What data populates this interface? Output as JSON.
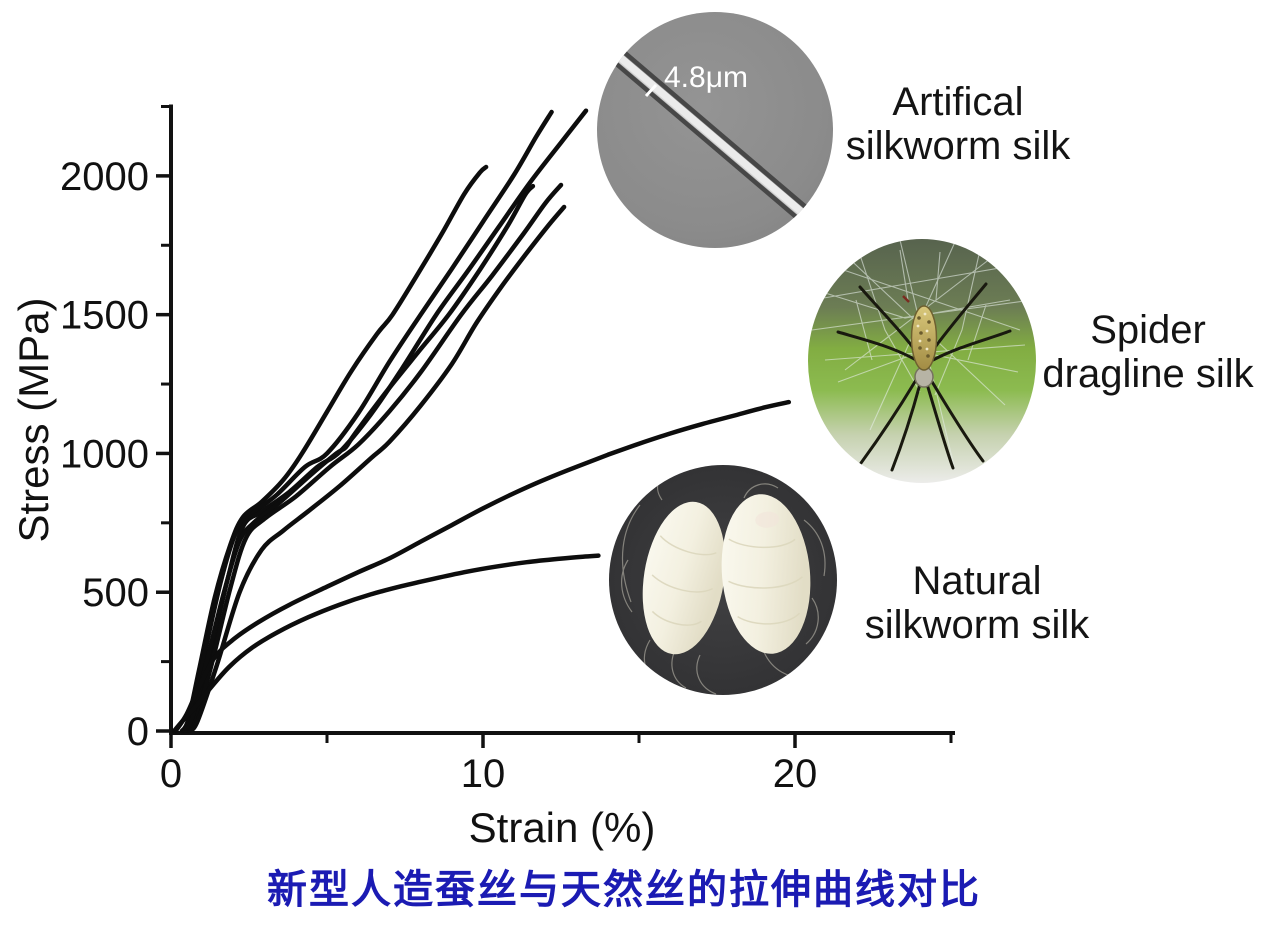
{
  "caption": {
    "text": "新型人造蚕丝与天然丝的拉伸曲线对比",
    "color": "#1b1bb3"
  },
  "chart_data": {
    "type": "line",
    "xlabel": "Strain (%)",
    "ylabel": "Stress (MPa)",
    "xlim": [
      0,
      25
    ],
    "ylim": [
      0,
      2250
    ],
    "x_major_ticks": [
      0,
      10,
      20
    ],
    "x_minor_ticks": [
      5,
      15,
      25
    ],
    "y_major_ticks": [
      0,
      500,
      1000,
      1500,
      2000
    ],
    "y_minor_ticks": [
      250,
      750,
      1250,
      1750,
      2250
    ],
    "grid": false,
    "legend": "none",
    "line_color": "#0d0d0d",
    "series": [
      {
        "name": "artificial-silkworm-1",
        "group": "Artifical silkworm silk",
        "points": [
          [
            0.35,
            0
          ],
          [
            0.55,
            40
          ],
          [
            0.9,
            220
          ],
          [
            1.4,
            480
          ],
          [
            1.9,
            670
          ],
          [
            2.3,
            770
          ],
          [
            2.9,
            825
          ],
          [
            3.6,
            905
          ],
          [
            4.2,
            1000
          ],
          [
            5.0,
            1150
          ],
          [
            5.8,
            1300
          ],
          [
            6.6,
            1430
          ],
          [
            7.1,
            1500
          ],
          [
            7.9,
            1645
          ],
          [
            8.7,
            1795
          ],
          [
            9.4,
            1935
          ],
          [
            9.9,
            2012
          ],
          [
            10.1,
            2032
          ]
        ]
      },
      {
        "name": "artificial-silkworm-2",
        "group": "Artifical silkworm silk",
        "points": [
          [
            0.4,
            0
          ],
          [
            0.6,
            40
          ],
          [
            1.0,
            240
          ],
          [
            1.6,
            540
          ],
          [
            2.1,
            720
          ],
          [
            2.6,
            782
          ],
          [
            3.4,
            852
          ],
          [
            4.3,
            952
          ],
          [
            5.0,
            1000
          ],
          [
            6.0,
            1145
          ],
          [
            7.0,
            1330
          ],
          [
            8.0,
            1500
          ],
          [
            9.0,
            1665
          ],
          [
            10.0,
            1835
          ],
          [
            11.0,
            2005
          ],
          [
            11.7,
            2140
          ],
          [
            12.2,
            2230
          ]
        ]
      },
      {
        "name": "artificial-silkworm-3",
        "group": "Artifical silkworm silk",
        "points": [
          [
            0.5,
            0
          ],
          [
            0.7,
            40
          ],
          [
            1.2,
            250
          ],
          [
            1.8,
            540
          ],
          [
            2.3,
            735
          ],
          [
            2.9,
            790
          ],
          [
            3.8,
            862
          ],
          [
            4.7,
            952
          ],
          [
            5.4,
            1005
          ],
          [
            6.4,
            1140
          ],
          [
            7.4,
            1305
          ],
          [
            8.5,
            1500
          ],
          [
            9.5,
            1655
          ],
          [
            10.5,
            1815
          ],
          [
            11.5,
            1975
          ],
          [
            12.5,
            2120
          ],
          [
            13.3,
            2235
          ]
        ]
      },
      {
        "name": "artificial-silkworm-4",
        "group": "Artifical silkworm silk",
        "points": [
          [
            0.45,
            0
          ],
          [
            0.65,
            35
          ],
          [
            1.1,
            230
          ],
          [
            1.7,
            500
          ],
          [
            2.2,
            685
          ],
          [
            2.7,
            755
          ],
          [
            3.5,
            825
          ],
          [
            4.5,
            925
          ],
          [
            5.3,
            1000
          ],
          [
            5.6,
            1022
          ],
          [
            5.9,
            1072
          ],
          [
            6.9,
            1222
          ],
          [
            7.9,
            1362
          ],
          [
            8.9,
            1500
          ],
          [
            9.9,
            1662
          ],
          [
            10.8,
            1822
          ],
          [
            11.35,
            1932
          ],
          [
            11.6,
            1963
          ]
        ]
      },
      {
        "name": "artificial-silkworm-5",
        "group": "Artifical silkworm silk",
        "points": [
          [
            0.55,
            0
          ],
          [
            0.8,
            40
          ],
          [
            1.3,
            240
          ],
          [
            1.9,
            515
          ],
          [
            2.4,
            695
          ],
          [
            3.0,
            765
          ],
          [
            4.0,
            845
          ],
          [
            5.1,
            952
          ],
          [
            6.0,
            1032
          ],
          [
            7.0,
            1152
          ],
          [
            8.0,
            1292
          ],
          [
            9.3,
            1500
          ],
          [
            10.3,
            1642
          ],
          [
            11.3,
            1792
          ],
          [
            12.0,
            1902
          ],
          [
            12.5,
            1967
          ]
        ]
      },
      {
        "name": "artificial-silkworm-6",
        "group": "Artifical silkworm silk",
        "points": [
          [
            0.6,
            0
          ],
          [
            0.85,
            35
          ],
          [
            1.45,
            230
          ],
          [
            2.2,
            500
          ],
          [
            2.9,
            652
          ],
          [
            3.6,
            722
          ],
          [
            4.4,
            792
          ],
          [
            5.4,
            882
          ],
          [
            6.4,
            982
          ],
          [
            7.0,
            1042
          ],
          [
            8.0,
            1172
          ],
          [
            9.0,
            1322
          ],
          [
            9.8,
            1472
          ],
          [
            10.6,
            1602
          ],
          [
            11.4,
            1722
          ],
          [
            12.1,
            1822
          ],
          [
            12.6,
            1888
          ]
        ]
      },
      {
        "name": "spider-dragline",
        "group": "Spider dragline silk",
        "points": [
          [
            0.15,
            0
          ],
          [
            0.5,
            60
          ],
          [
            0.9,
            160
          ],
          [
            1.4,
            265
          ],
          [
            2.0,
            330
          ],
          [
            2.8,
            392
          ],
          [
            3.8,
            455
          ],
          [
            5.0,
            520
          ],
          [
            6.0,
            572
          ],
          [
            7.0,
            622
          ],
          [
            8.0,
            682
          ],
          [
            9.0,
            742
          ],
          [
            10.0,
            802
          ],
          [
            11.0,
            857
          ],
          [
            12.0,
            907
          ],
          [
            13.0,
            952
          ],
          [
            14.0,
            995
          ],
          [
            15.0,
            1035
          ],
          [
            16.0,
            1072
          ],
          [
            17.0,
            1105
          ],
          [
            18.0,
            1135
          ],
          [
            19.0,
            1165
          ],
          [
            19.8,
            1185
          ]
        ]
      },
      {
        "name": "natural-silkworm",
        "group": "Natural silkworm silk",
        "points": [
          [
            0.1,
            0
          ],
          [
            0.4,
            40
          ],
          [
            0.8,
            90
          ],
          [
            1.3,
            160
          ],
          [
            1.9,
            235
          ],
          [
            2.6,
            300
          ],
          [
            3.4,
            355
          ],
          [
            4.4,
            410
          ],
          [
            5.4,
            455
          ],
          [
            6.4,
            492
          ],
          [
            7.4,
            522
          ],
          [
            8.4,
            548
          ],
          [
            9.4,
            572
          ],
          [
            10.4,
            592
          ],
          [
            11.4,
            608
          ],
          [
            12.4,
            620
          ],
          [
            13.2,
            628
          ],
          [
            13.7,
            632
          ]
        ]
      }
    ]
  },
  "insets": [
    {
      "id": "artificial",
      "label_line1": "Artifical",
      "label_line2": "silkworm silk",
      "scale_annotation": "4.8μm"
    },
    {
      "id": "spider",
      "label_line1": "Spider",
      "label_line2": "dragline silk"
    },
    {
      "id": "natural",
      "label_line1": "Natural",
      "label_line2": "silkworm silk"
    }
  ]
}
